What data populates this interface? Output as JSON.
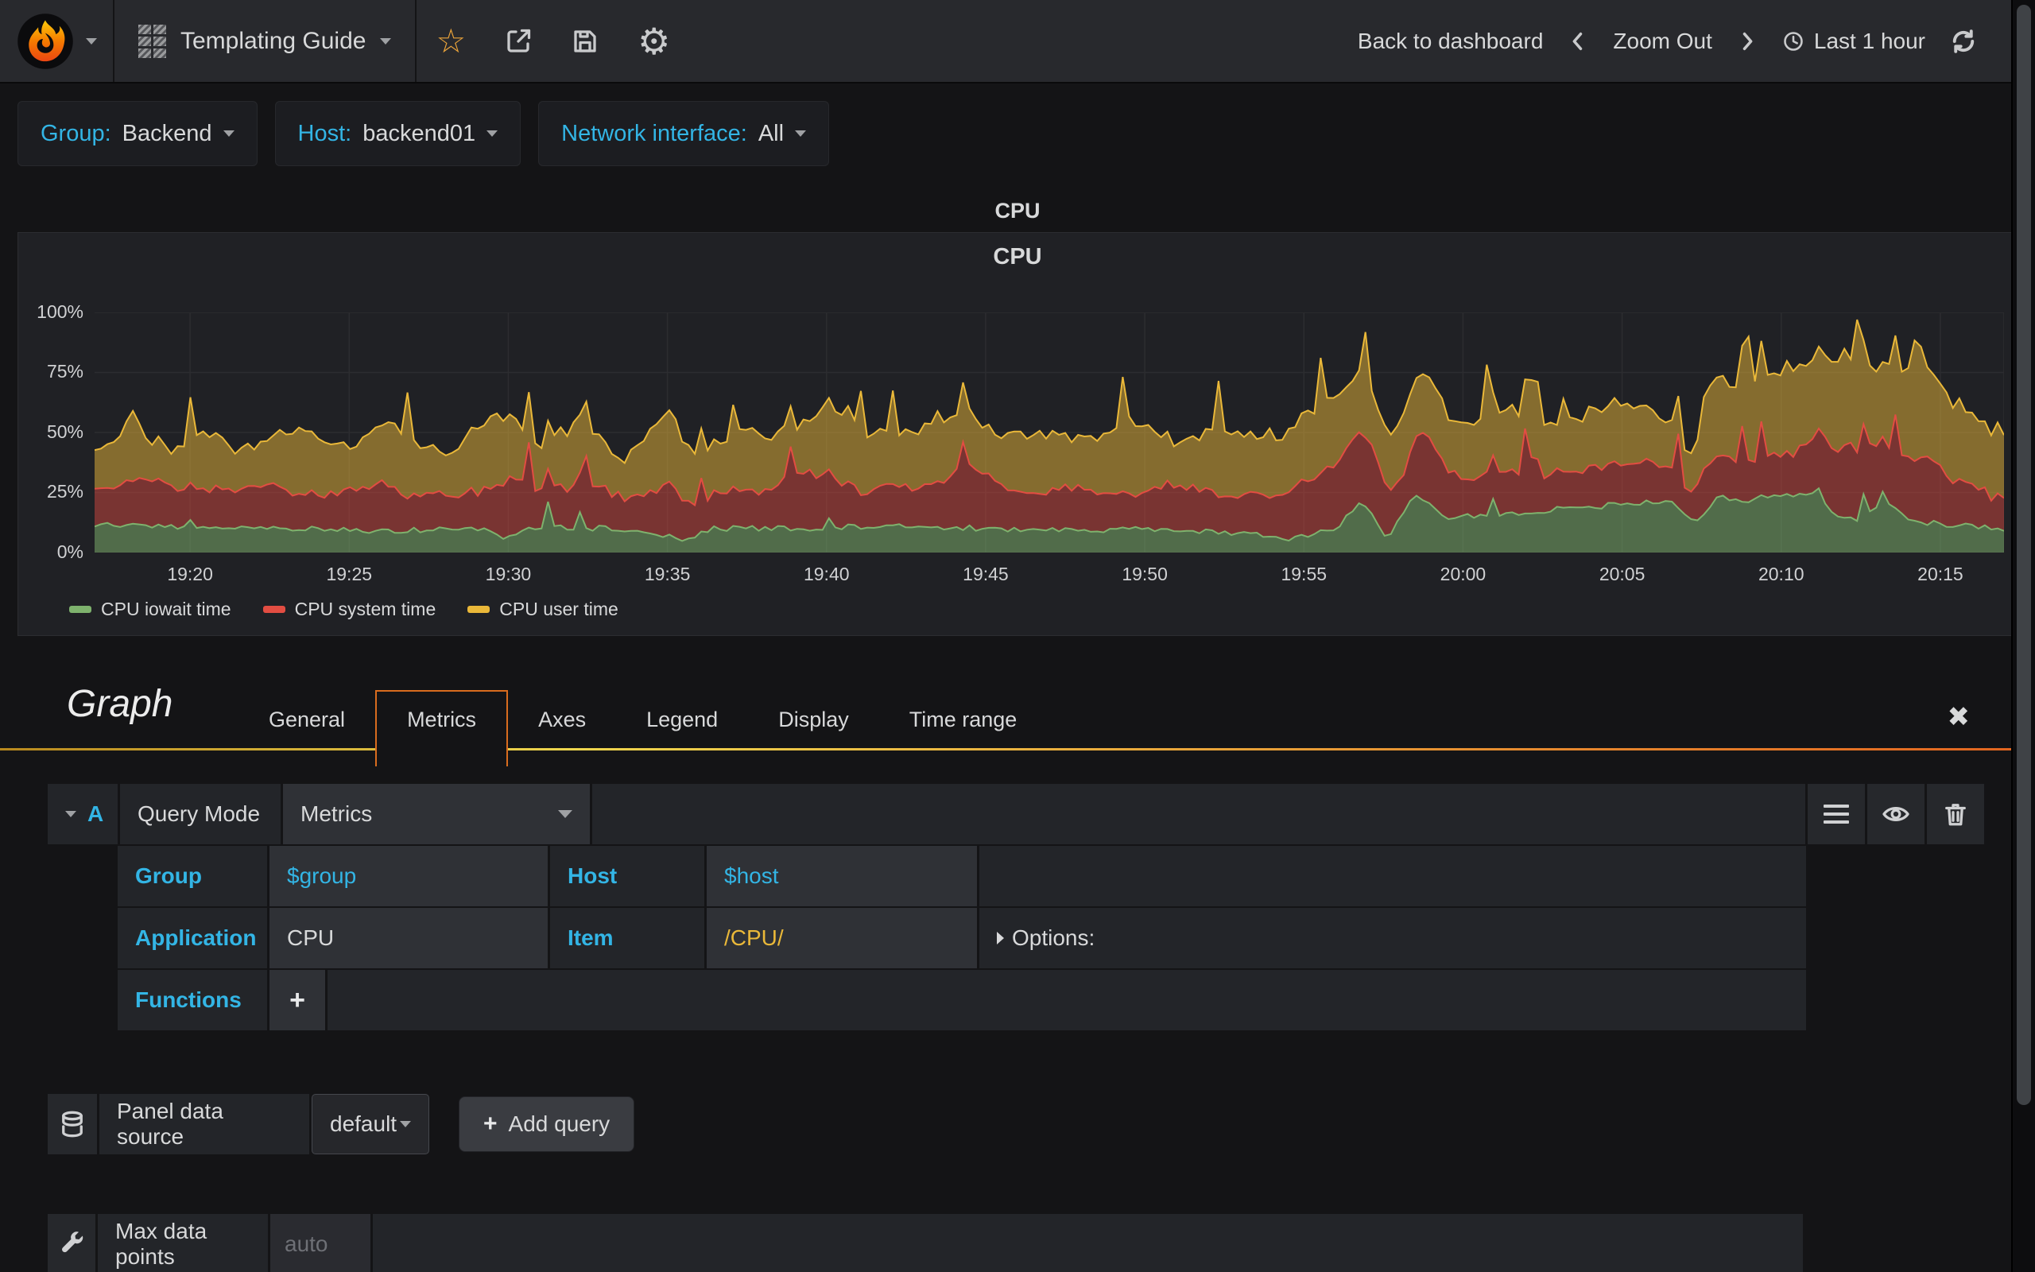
{
  "icons": {
    "star": "☆",
    "gear": "⚙",
    "close": "✖",
    "plus": "+"
  },
  "navbar": {
    "dashboard_title": "Templating Guide",
    "back_to_dashboard": "Back to dashboard",
    "zoom_out": "Zoom Out",
    "time_range": "Last 1 hour"
  },
  "variables": [
    {
      "label": "Group:",
      "value": "Backend"
    },
    {
      "label": "Host:",
      "value": "backend01"
    },
    {
      "label": "Network interface:",
      "value": "All"
    }
  ],
  "panel": {
    "title": "CPU",
    "chart_title": "CPU"
  },
  "chart_data": {
    "type": "area",
    "stacked": true,
    "title": "CPU",
    "ylabel": "percent",
    "ylim": [
      0,
      100
    ],
    "grid": true,
    "legend_position": "bottom",
    "x_range_minutes": 60,
    "x_start_label": "19:17",
    "first_tick_offset_min": 3,
    "tick_interval_min": 5,
    "x_ticks": [
      "19:20",
      "19:25",
      "19:30",
      "19:35",
      "19:40",
      "19:45",
      "19:50",
      "19:55",
      "20:00",
      "20:05",
      "20:10",
      "20:15"
    ],
    "y_ticks": [
      "0%",
      "25%",
      "50%",
      "75%",
      "100%"
    ],
    "note": "stacked percent series, values approximated from pixels",
    "series": [
      {
        "name": "CPU iowait time",
        "color": "#7EB26D",
        "fill_opacity": 0.52,
        "keyframes": [
          [
            0,
            12
          ],
          [
            3,
            10
          ],
          [
            6,
            10
          ],
          [
            9,
            9
          ],
          [
            12,
            10
          ],
          [
            13,
            6
          ],
          [
            14,
            11
          ],
          [
            16,
            10
          ],
          [
            18.5,
            5.5
          ],
          [
            19.5,
            10
          ],
          [
            22,
            10
          ],
          [
            25,
            11
          ],
          [
            28,
            10
          ],
          [
            31,
            9
          ],
          [
            34,
            10
          ],
          [
            37.5,
            6
          ],
          [
            39,
            10
          ],
          [
            39.8,
            22
          ],
          [
            40.6,
            6
          ],
          [
            41.5,
            25
          ],
          [
            42.5,
            15
          ],
          [
            44,
            16
          ],
          [
            46,
            18
          ],
          [
            48,
            20
          ],
          [
            49.5,
            22
          ],
          [
            50.3,
            12
          ],
          [
            51,
            23
          ],
          [
            52,
            22
          ],
          [
            53,
            24
          ],
          [
            54,
            25
          ],
          [
            54.8,
            14
          ],
          [
            55.5,
            13
          ],
          [
            56.3,
            22
          ],
          [
            57,
            13
          ],
          [
            58,
            12
          ],
          [
            59,
            11
          ],
          [
            60,
            10
          ]
        ]
      },
      {
        "name": "CPU system time",
        "color": "#E24D42",
        "fill_opacity": 0.46,
        "keyframes": [
          [
            0,
            14
          ],
          [
            1.5,
            20
          ],
          [
            3,
            14
          ],
          [
            5,
            18
          ],
          [
            7,
            13
          ],
          [
            9,
            20
          ],
          [
            10,
            14
          ],
          [
            12,
            15
          ],
          [
            13,
            25
          ],
          [
            14,
            15
          ],
          [
            15.5,
            18
          ],
          [
            17,
            13
          ],
          [
            18,
            22
          ],
          [
            19,
            14
          ],
          [
            21,
            16
          ],
          [
            22.5,
            24
          ],
          [
            24,
            15
          ],
          [
            26,
            17
          ],
          [
            27.5,
            25
          ],
          [
            29,
            15
          ],
          [
            31,
            18
          ],
          [
            32.5,
            13
          ],
          [
            34,
            20
          ],
          [
            35.5,
            14
          ],
          [
            37,
            18
          ],
          [
            38.5,
            25
          ],
          [
            40,
            30
          ],
          [
            41,
            14
          ],
          [
            41.8,
            28
          ],
          [
            43,
            16
          ],
          [
            44.5,
            18
          ],
          [
            45,
            16
          ],
          [
            45.2,
            28
          ],
          [
            45.5,
            16
          ],
          [
            46,
            15
          ],
          [
            47.5,
            17
          ],
          [
            49,
            16
          ],
          [
            50.3,
            10
          ],
          [
            50.5,
            20
          ],
          [
            52,
            16
          ],
          [
            53.5,
            18
          ],
          [
            54.5,
            28
          ],
          [
            55.5,
            30
          ],
          [
            56.5,
            22
          ],
          [
            57.5,
            28
          ],
          [
            58.5,
            18
          ],
          [
            59.5,
            14
          ],
          [
            60,
            12
          ]
        ]
      },
      {
        "name": "CPU user time",
        "color": "#EAB839",
        "fill_opacity": 0.5,
        "keyframes": [
          [
            0,
            16
          ],
          [
            1,
            24
          ],
          [
            2.2,
            14
          ],
          [
            3.5,
            22
          ],
          [
            5,
            16
          ],
          [
            6.5,
            26
          ],
          [
            8,
            18
          ],
          [
            9.5,
            28
          ],
          [
            11,
            16
          ],
          [
            12.5,
            30
          ],
          [
            14,
            18
          ],
          [
            15,
            26
          ],
          [
            16.5,
            16
          ],
          [
            18,
            30
          ],
          [
            19,
            20
          ],
          [
            20.5,
            26
          ],
          [
            22,
            18
          ],
          [
            23.5,
            32
          ],
          [
            25,
            20
          ],
          [
            26.5,
            28
          ],
          [
            28,
            18
          ],
          [
            29.5,
            26
          ],
          [
            31,
            20
          ],
          [
            32.5,
            30
          ],
          [
            34,
            18
          ],
          [
            35.5,
            28
          ],
          [
            37,
            22
          ],
          [
            38.5,
            30
          ],
          [
            40,
            24
          ],
          [
            41.5,
            24
          ],
          [
            43,
            22
          ],
          [
            44.5,
            26
          ],
          [
            45,
            22
          ],
          [
            45.2,
            38
          ],
          [
            45.5,
            22
          ],
          [
            46,
            20
          ],
          [
            47.5,
            26
          ],
          [
            49,
            22
          ],
          [
            50.3,
            14
          ],
          [
            50.5,
            30
          ],
          [
            52,
            32
          ],
          [
            53,
            36
          ],
          [
            54,
            34
          ],
          [
            55,
            38
          ],
          [
            56,
            30
          ],
          [
            57.3,
            40
          ],
          [
            58,
            36
          ],
          [
            59,
            30
          ],
          [
            60,
            28
          ]
        ]
      }
    ]
  },
  "editor": {
    "panel_type": "Graph",
    "tabs": [
      "General",
      "Metrics",
      "Axes",
      "Legend",
      "Display",
      "Time range"
    ],
    "active_tab": "Metrics",
    "query": {
      "letter": "A",
      "mode_label": "Query Mode",
      "mode_value": "Metrics",
      "group_label": "Group",
      "group_value": "$group",
      "host_label": "Host",
      "host_value": "$host",
      "application_label": "Application",
      "application_value": "CPU",
      "item_label": "Item",
      "item_value": "/CPU/",
      "options_label": "Options:",
      "functions_label": "Functions"
    },
    "datasource": {
      "label": "Panel data source",
      "value": "default",
      "add_query_label": "Add query"
    },
    "max_data_points": {
      "label": "Max data points",
      "placeholder": "auto"
    }
  }
}
